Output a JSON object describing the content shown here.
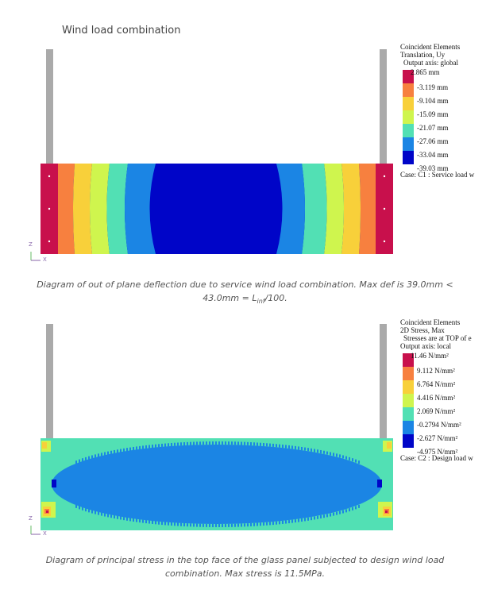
{
  "heading": "Wind load combination",
  "figure1": {
    "legend": {
      "header": [
        "Coincident Elements",
        "Translation, Uy",
        "Output axis: global"
      ],
      "values": [
        "2.865 mm",
        "-3.119 mm",
        "-9.104 mm",
        "-15.09 mm",
        "-21.07 mm",
        "-27.06 mm",
        "-33.04 mm",
        "-39.03 mm"
      ],
      "colors": [
        "#c8104c",
        "#f7803f",
        "#f8d03a",
        "#cff54e",
        "#52e0b4",
        "#1b85e4",
        "#0005c8"
      ],
      "case": "Case: C1 : Service load w"
    },
    "axis_z": "Z",
    "axis_x": "X",
    "caption_line1": "Diagram of out of plane deflection due to service wind load combination. Max def is 39.0mm <",
    "caption_line2": "43.0mm = L",
    "caption_sub": "inf",
    "caption_line2_end": "/100."
  },
  "figure2": {
    "legend": {
      "header": [
        "Coincident Elements",
        "2D Stress, Max",
        "Stresses are at TOP of e",
        "Output axis: local"
      ],
      "values": [
        "11.46 N/mm²",
        "9.112 N/mm²",
        "6.764 N/mm²",
        "4.416 N/mm²",
        "2.069 N/mm²",
        "-0.2794 N/mm²",
        "-2.627 N/mm²",
        "-4.975 N/mm²"
      ],
      "colors": [
        "#c8104c",
        "#f7803f",
        "#f8d03a",
        "#cff54e",
        "#52e0b4",
        "#1b85e4",
        "#0005c8"
      ],
      "case": "Case: C2 : Design load w"
    },
    "axis_z": "Z",
    "axis_x": "X",
    "caption_line1": "Diagram of principal stress in the top face of the glass panel subjected to design wind load",
    "caption_line2": "combination. Max stress is 11.5MPa."
  }
}
